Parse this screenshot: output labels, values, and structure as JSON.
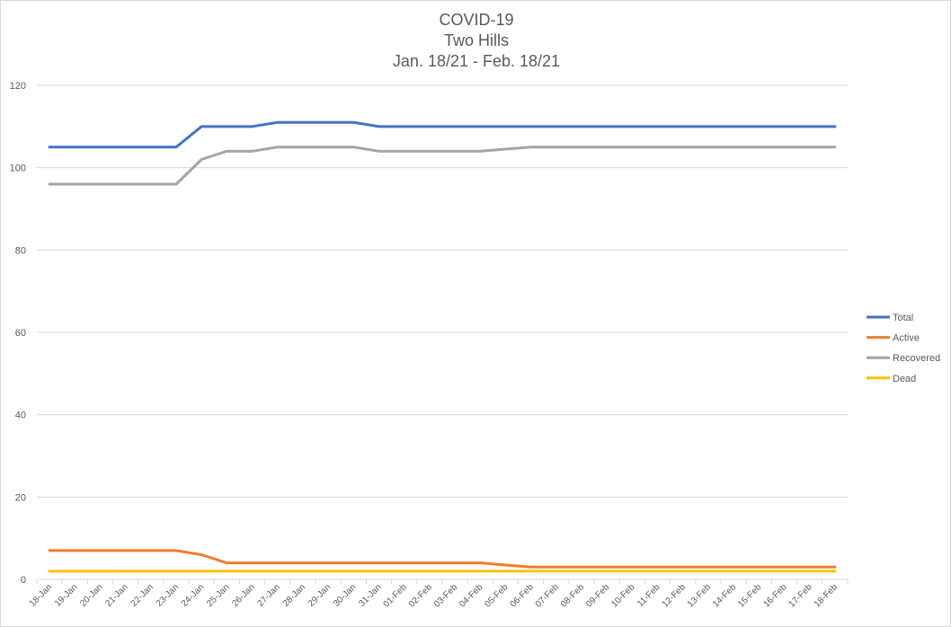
{
  "chart_data": {
    "type": "line",
    "title": [
      "COVID-19",
      "Two Hills",
      "Jan. 18/21 - Feb. 18/21"
    ],
    "xlabel": "",
    "ylabel": "",
    "ylim": [
      0,
      120
    ],
    "yticks": [
      0,
      20,
      40,
      60,
      80,
      100,
      120
    ],
    "grid": true,
    "legend_position": "right",
    "categories": [
      "18-Jan",
      "19-Jan",
      "20-Jan",
      "21-Jan",
      "22-Jan",
      "23-Jan",
      "24-Jan",
      "25-Jan",
      "26-Jan",
      "27-Jan",
      "28-Jan",
      "29-Jan",
      "30-Jan",
      "31-Jan",
      "01-Feb",
      "02-Feb",
      "03-Feb",
      "04-Feb",
      "05-Feb",
      "06-Feb",
      "07-Feb",
      "08-Feb",
      "09-Feb",
      "10-Feb",
      "11-Feb",
      "12-Feb",
      "13-Feb",
      "14-Feb",
      "15-Feb",
      "16-Feb",
      "17-Feb",
      "18-Feb"
    ],
    "series": [
      {
        "name": "Total",
        "color": "#4472c4",
        "values": [
          105,
          105,
          105,
          105,
          105,
          105,
          110,
          110,
          110,
          111,
          111,
          111,
          111,
          110,
          110,
          110,
          110,
          110,
          110,
          110,
          110,
          110,
          110,
          110,
          110,
          110,
          110,
          110,
          110,
          110,
          110,
          110
        ]
      },
      {
        "name": "Active",
        "color": "#ed7d31",
        "values": [
          7,
          7,
          7,
          7,
          7,
          7,
          6,
          4,
          4,
          4,
          4,
          4,
          4,
          4,
          4,
          4,
          4,
          4,
          3.5,
          3,
          3,
          3,
          3,
          3,
          3,
          3,
          3,
          3,
          3,
          3,
          3,
          3
        ]
      },
      {
        "name": "Recovered",
        "color": "#a5a5a5",
        "values": [
          96,
          96,
          96,
          96,
          96,
          96,
          102,
          104,
          104,
          105,
          105,
          105,
          105,
          104,
          104,
          104,
          104,
          104,
          104.5,
          105,
          105,
          105,
          105,
          105,
          105,
          105,
          105,
          105,
          105,
          105,
          105,
          105
        ]
      },
      {
        "name": "Dead",
        "color": "#ffc000",
        "values": [
          2,
          2,
          2,
          2,
          2,
          2,
          2,
          2,
          2,
          2,
          2,
          2,
          2,
          2,
          2,
          2,
          2,
          2,
          2,
          2,
          2,
          2,
          2,
          2,
          2,
          2,
          2,
          2,
          2,
          2,
          2,
          2
        ]
      }
    ]
  }
}
